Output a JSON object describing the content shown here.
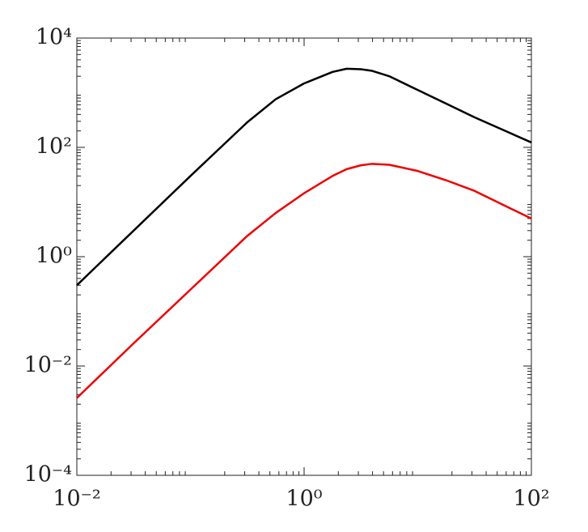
{
  "chart_data": {
    "type": "line",
    "log_x": true,
    "log_y": true,
    "x": [
      0.01,
      0.0316,
      0.1,
      0.316,
      0.562,
      1,
      1.78,
      2.37,
      3.16,
      3.98,
      5.62,
      10,
      17.8,
      31.6,
      56.2,
      100
    ],
    "series": [
      {
        "color": "#000000",
        "values": [
          0.3,
          3.0,
          30,
          288,
          759,
          1480,
          2400,
          2750,
          2690,
          2510,
          2000,
          1120,
          631,
          355,
          209,
          123
        ]
      },
      {
        "color": "#ee0000",
        "values": [
          0.0026,
          0.026,
          0.25,
          2.4,
          6.3,
          14.5,
          30,
          40,
          47,
          50,
          48,
          37,
          25,
          16,
          8.9,
          5.0
        ]
      }
    ],
    "xlim": [
      0.01,
      100
    ],
    "xticks": [
      {
        "value": 0.01,
        "label": "10⁻²"
      },
      {
        "value": 1,
        "label": "10⁰"
      },
      {
        "value": 100,
        "label": "10²"
      }
    ],
    "ylim": [
      0.0001,
      10000
    ],
    "yticks": [
      {
        "value": 0.0001,
        "label": "10⁻⁴"
      },
      {
        "value": 0.01,
        "label": "10⁻²"
      },
      {
        "value": 1,
        "label": "10⁰"
      },
      {
        "value": 100,
        "label": "10²"
      },
      {
        "value": 10000,
        "label": "10⁴"
      }
    ],
    "grid": false
  }
}
